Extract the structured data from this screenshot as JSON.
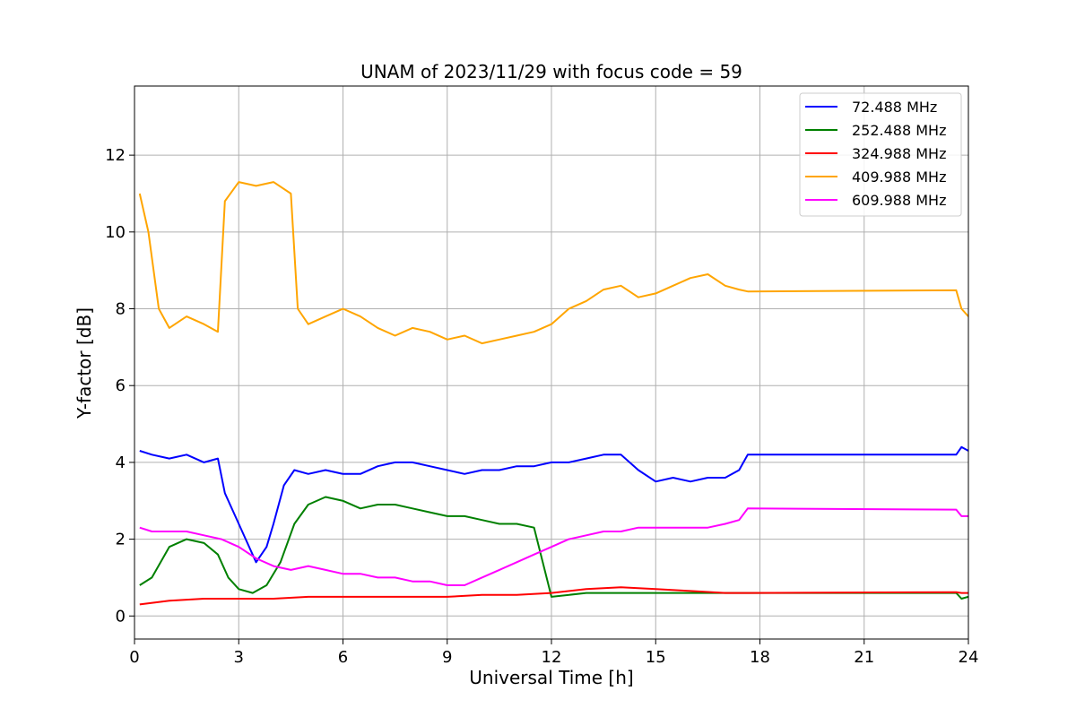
{
  "chart_data": {
    "type": "line",
    "title": "UNAM of 2023/11/29 with focus code = 59",
    "xlabel": "Universal Time [h]",
    "ylabel": "Y-factor [dB]",
    "xlim": [
      0,
      24
    ],
    "ylim": [
      -0.6,
      13.8
    ],
    "xticks": [
      0,
      3,
      6,
      9,
      12,
      15,
      18,
      21,
      24
    ],
    "yticks": [
      0,
      2,
      4,
      6,
      8,
      10,
      12
    ],
    "grid": true,
    "legend_position": "top-right",
    "series": [
      {
        "name": " 72.488 MHz",
        "color": "#0000ff",
        "points": [
          [
            0.15,
            4.3
          ],
          [
            0.5,
            4.2
          ],
          [
            1.0,
            4.1
          ],
          [
            1.5,
            4.2
          ],
          [
            2.0,
            4.0
          ],
          [
            2.4,
            4.1
          ],
          [
            2.6,
            3.2
          ],
          [
            2.9,
            2.6
          ],
          [
            3.2,
            2.0
          ],
          [
            3.5,
            1.4
          ],
          [
            3.8,
            1.8
          ],
          [
            4.0,
            2.4
          ],
          [
            4.3,
            3.4
          ],
          [
            4.6,
            3.8
          ],
          [
            5.0,
            3.7
          ],
          [
            5.5,
            3.8
          ],
          [
            6.0,
            3.7
          ],
          [
            6.5,
            3.7
          ],
          [
            7.0,
            3.9
          ],
          [
            7.5,
            4.0
          ],
          [
            8.0,
            4.0
          ],
          [
            8.5,
            3.9
          ],
          [
            9.0,
            3.8
          ],
          [
            9.5,
            3.7
          ],
          [
            10.0,
            3.8
          ],
          [
            10.5,
            3.8
          ],
          [
            11.0,
            3.9
          ],
          [
            11.5,
            3.9
          ],
          [
            12.0,
            4.0
          ],
          [
            12.5,
            4.0
          ],
          [
            13.0,
            4.1
          ],
          [
            13.5,
            4.2
          ],
          [
            14.0,
            4.2
          ],
          [
            14.5,
            3.8
          ],
          [
            15.0,
            3.5
          ],
          [
            15.5,
            3.6
          ],
          [
            16.0,
            3.5
          ],
          [
            16.5,
            3.6
          ],
          [
            17.0,
            3.6
          ],
          [
            17.4,
            3.8
          ],
          [
            17.65,
            4.2
          ],
          [
            23.65,
            4.2
          ],
          [
            23.8,
            4.4
          ],
          [
            24.0,
            4.3
          ]
        ]
      },
      {
        "name": "252.488 MHz",
        "color": "#008000",
        "points": [
          [
            0.15,
            0.8
          ],
          [
            0.5,
            1.0
          ],
          [
            1.0,
            1.8
          ],
          [
            1.5,
            2.0
          ],
          [
            2.0,
            1.9
          ],
          [
            2.4,
            1.6
          ],
          [
            2.7,
            1.0
          ],
          [
            3.0,
            0.7
          ],
          [
            3.4,
            0.6
          ],
          [
            3.8,
            0.8
          ],
          [
            4.2,
            1.4
          ],
          [
            4.6,
            2.4
          ],
          [
            5.0,
            2.9
          ],
          [
            5.5,
            3.1
          ],
          [
            6.0,
            3.0
          ],
          [
            6.5,
            2.8
          ],
          [
            7.0,
            2.9
          ],
          [
            7.5,
            2.9
          ],
          [
            8.0,
            2.8
          ],
          [
            8.5,
            2.7
          ],
          [
            9.0,
            2.6
          ],
          [
            9.5,
            2.6
          ],
          [
            10.0,
            2.5
          ],
          [
            10.5,
            2.4
          ],
          [
            11.0,
            2.4
          ],
          [
            11.5,
            2.3
          ],
          [
            12.0,
            0.5
          ],
          [
            13.0,
            0.6
          ],
          [
            14.0,
            0.6
          ],
          [
            15.0,
            0.6
          ],
          [
            16.0,
            0.6
          ],
          [
            17.0,
            0.6
          ],
          [
            17.65,
            0.6
          ],
          [
            23.65,
            0.6
          ],
          [
            23.8,
            0.45
          ],
          [
            24.0,
            0.5
          ]
        ]
      },
      {
        "name": "324.988 MHz",
        "color": "#ff0000",
        "points": [
          [
            0.15,
            0.3
          ],
          [
            1.0,
            0.4
          ],
          [
            2.0,
            0.45
          ],
          [
            3.0,
            0.45
          ],
          [
            4.0,
            0.45
          ],
          [
            5.0,
            0.5
          ],
          [
            6.0,
            0.5
          ],
          [
            7.0,
            0.5
          ],
          [
            8.0,
            0.5
          ],
          [
            9.0,
            0.5
          ],
          [
            10.0,
            0.55
          ],
          [
            11.0,
            0.55
          ],
          [
            12.0,
            0.6
          ],
          [
            13.0,
            0.7
          ],
          [
            14.0,
            0.75
          ],
          [
            15.0,
            0.7
          ],
          [
            16.0,
            0.65
          ],
          [
            17.0,
            0.6
          ],
          [
            17.65,
            0.6
          ],
          [
            23.65,
            0.62
          ],
          [
            23.8,
            0.6
          ],
          [
            24.0,
            0.6
          ]
        ]
      },
      {
        "name": "409.988 MHz",
        "color": "#ffa500",
        "points": [
          [
            0.15,
            11.0
          ],
          [
            0.4,
            10.0
          ],
          [
            0.7,
            8.0
          ],
          [
            1.0,
            7.5
          ],
          [
            1.5,
            7.8
          ],
          [
            2.0,
            7.6
          ],
          [
            2.4,
            7.4
          ],
          [
            2.6,
            10.8
          ],
          [
            3.0,
            11.3
          ],
          [
            3.5,
            11.2
          ],
          [
            4.0,
            11.3
          ],
          [
            4.5,
            11.0
          ],
          [
            4.7,
            8.0
          ],
          [
            5.0,
            7.6
          ],
          [
            5.5,
            7.8
          ],
          [
            6.0,
            8.0
          ],
          [
            6.5,
            7.8
          ],
          [
            7.0,
            7.5
          ],
          [
            7.5,
            7.3
          ],
          [
            8.0,
            7.5
          ],
          [
            8.5,
            7.4
          ],
          [
            9.0,
            7.2
          ],
          [
            9.5,
            7.3
          ],
          [
            10.0,
            7.1
          ],
          [
            10.5,
            7.2
          ],
          [
            11.0,
            7.3
          ],
          [
            11.5,
            7.4
          ],
          [
            12.0,
            7.6
          ],
          [
            12.5,
            8.0
          ],
          [
            13.0,
            8.2
          ],
          [
            13.5,
            8.5
          ],
          [
            14.0,
            8.6
          ],
          [
            14.5,
            8.3
          ],
          [
            15.0,
            8.4
          ],
          [
            15.5,
            8.6
          ],
          [
            16.0,
            8.8
          ],
          [
            16.5,
            8.9
          ],
          [
            17.0,
            8.6
          ],
          [
            17.4,
            8.5
          ],
          [
            17.65,
            8.45
          ],
          [
            23.65,
            8.48
          ],
          [
            23.8,
            8.0
          ],
          [
            24.0,
            7.8
          ]
        ]
      },
      {
        "name": "609.988 MHz",
        "color": "#ff00ff",
        "points": [
          [
            0.15,
            2.3
          ],
          [
            0.5,
            2.2
          ],
          [
            1.0,
            2.2
          ],
          [
            1.5,
            2.2
          ],
          [
            2.0,
            2.1
          ],
          [
            2.5,
            2.0
          ],
          [
            3.0,
            1.8
          ],
          [
            3.5,
            1.5
          ],
          [
            4.0,
            1.3
          ],
          [
            4.5,
            1.2
          ],
          [
            5.0,
            1.3
          ],
          [
            5.5,
            1.2
          ],
          [
            6.0,
            1.1
          ],
          [
            6.5,
            1.1
          ],
          [
            7.0,
            1.0
          ],
          [
            7.5,
            1.0
          ],
          [
            8.0,
            0.9
          ],
          [
            8.5,
            0.9
          ],
          [
            9.0,
            0.8
          ],
          [
            9.5,
            0.8
          ],
          [
            10.0,
            1.0
          ],
          [
            10.5,
            1.2
          ],
          [
            11.0,
            1.4
          ],
          [
            11.5,
            1.6
          ],
          [
            12.0,
            1.8
          ],
          [
            12.5,
            2.0
          ],
          [
            13.0,
            2.1
          ],
          [
            13.5,
            2.2
          ],
          [
            14.0,
            2.2
          ],
          [
            14.5,
            2.3
          ],
          [
            15.0,
            2.3
          ],
          [
            15.5,
            2.3
          ],
          [
            16.0,
            2.3
          ],
          [
            16.5,
            2.3
          ],
          [
            17.0,
            2.4
          ],
          [
            17.4,
            2.5
          ],
          [
            17.65,
            2.8
          ],
          [
            23.65,
            2.77
          ],
          [
            23.8,
            2.6
          ],
          [
            24.0,
            2.6
          ]
        ]
      }
    ]
  }
}
